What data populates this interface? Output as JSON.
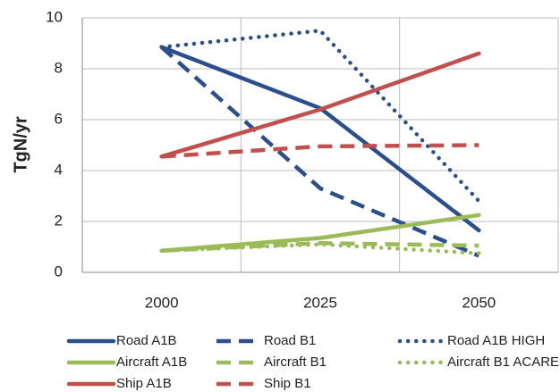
{
  "chart_data": {
    "type": "line",
    "y_label": "TgN/yr",
    "categories": [
      "2000",
      "2025",
      "2050"
    ],
    "ylim": [
      0,
      10
    ],
    "yticks": [
      0,
      2,
      4,
      6,
      8,
      10
    ],
    "grid": true,
    "legend": "bottom",
    "series": [
      {
        "name": "Road A1B",
        "color": "#2b4f8c",
        "dash": "solid",
        "values": [
          8.85,
          6.45,
          1.65
        ]
      },
      {
        "name": "Road B1",
        "color": "#2b4f8c",
        "dash": "dashed",
        "values": [
          8.85,
          3.3,
          0.65
        ]
      },
      {
        "name": "Road A1B HIGH",
        "color": "#2b4f8c",
        "dash": "dotted",
        "values": [
          8.85,
          9.5,
          2.8
        ]
      },
      {
        "name": "Aircraft A1B",
        "color": "#9bbb59",
        "dash": "solid",
        "values": [
          0.85,
          1.35,
          2.25
        ]
      },
      {
        "name": "Aircraft B1",
        "color": "#9bbb59",
        "dash": "dashed",
        "values": [
          0.85,
          1.15,
          1.05
        ]
      },
      {
        "name": "Aircraft B1 ACARE",
        "color": "#9bbb59",
        "dash": "dotted",
        "values": [
          0.85,
          1.1,
          0.75
        ]
      },
      {
        "name": "Ship A1B",
        "color": "#c0504d",
        "dash": "solid",
        "values": [
          4.55,
          6.4,
          8.6
        ]
      },
      {
        "name": "Ship B1",
        "color": "#c0504d",
        "dash": "dashed",
        "values": [
          4.55,
          4.95,
          5.0
        ]
      }
    ]
  }
}
